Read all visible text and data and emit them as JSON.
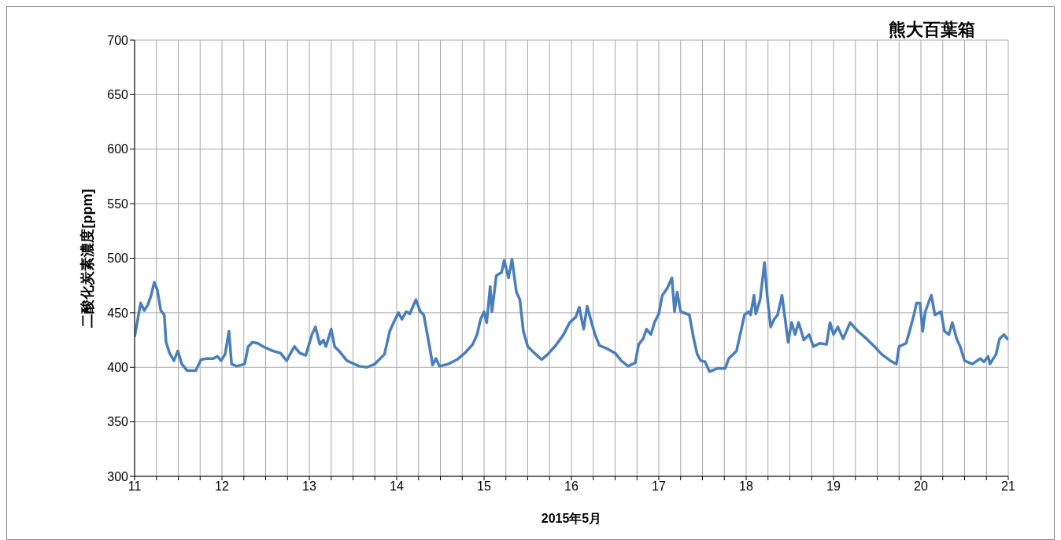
{
  "chart_data": {
    "type": "line",
    "title": "熊大百葉箱",
    "xlabel": "2015年5月",
    "ylabel": "二酸化炭素濃度[ppm]",
    "xlim": [
      11,
      21
    ],
    "ylim": [
      300,
      700
    ],
    "xticks": [
      11,
      {
        "value": 11.25,
        "label": null
      },
      {
        "value": 11.5,
        "label": null
      },
      {
        "value": 11.75,
        "label": null
      },
      12,
      {
        "value": 12.25,
        "label": null
      },
      {
        "value": 12.5,
        "label": null
      },
      {
        "value": 12.75,
        "label": null
      },
      13,
      {
        "value": 13.25,
        "label": null
      },
      {
        "value": 13.5,
        "label": null
      },
      {
        "value": 13.75,
        "label": null
      },
      14,
      {
        "value": 14.25,
        "label": null
      },
      {
        "value": 14.5,
        "label": null
      },
      {
        "value": 14.75,
        "label": null
      },
      15,
      {
        "value": 15.25,
        "label": null
      },
      {
        "value": 15.5,
        "label": null
      },
      {
        "value": 15.75,
        "label": null
      },
      16,
      {
        "value": 16.25,
        "label": null
      },
      {
        "value": 16.5,
        "label": null
      },
      {
        "value": 16.75,
        "label": null
      },
      17,
      {
        "value": 17.25,
        "label": null
      },
      {
        "value": 17.5,
        "label": null
      },
      {
        "value": 17.75,
        "label": null
      },
      18,
      {
        "value": 18.25,
        "label": null
      },
      {
        "value": 18.5,
        "label": null
      },
      {
        "value": 18.75,
        "label": null
      },
      19,
      {
        "value": 19.25,
        "label": null
      },
      {
        "value": 19.5,
        "label": null
      },
      {
        "value": 19.75,
        "label": null
      },
      20,
      {
        "value": 20.25,
        "label": null
      },
      {
        "value": 20.5,
        "label": null
      },
      {
        "value": 20.75,
        "label": null
      },
      21
    ],
    "yticks": [
      300,
      350,
      400,
      450,
      500,
      550,
      600,
      650,
      700
    ],
    "grid": true,
    "marker": "none",
    "series": [
      {
        "color": "#4a7ebb",
        "x": [
          11.0,
          11.045,
          11.07,
          11.11,
          11.15,
          11.19,
          11.225,
          11.26,
          11.3,
          11.34,
          11.36,
          11.4,
          11.45,
          11.495,
          11.54,
          11.6,
          11.7,
          11.76,
          11.83,
          11.9,
          11.95,
          11.99,
          12.036,
          12.08,
          12.11,
          12.17,
          12.26,
          12.3,
          12.35,
          12.41,
          12.47,
          12.58,
          12.67,
          12.74,
          12.8,
          12.83,
          12.89,
          12.96,
          13.03,
          13.07,
          13.12,
          13.16,
          13.19,
          13.25,
          13.29,
          13.34,
          13.43,
          13.57,
          13.66,
          13.75,
          13.86,
          13.92,
          13.97,
          14.02,
          14.06,
          14.11,
          14.15,
          14.22,
          14.27,
          14.31,
          14.36,
          14.4,
          14.41,
          14.45,
          14.49,
          14.59,
          14.69,
          14.78,
          14.87,
          14.92,
          14.96,
          15.0,
          15.03,
          15.07,
          15.09,
          15.14,
          15.2,
          15.23,
          15.28,
          15.32,
          15.37,
          15.41,
          15.45,
          15.5,
          15.59,
          15.66,
          15.73,
          15.82,
          15.91,
          15.98,
          16.05,
          16.09,
          16.14,
          16.18,
          16.23,
          16.27,
          16.32,
          16.41,
          16.5,
          16.57,
          16.65,
          16.73,
          16.77,
          16.82,
          16.86,
          16.91,
          16.95,
          17.0,
          17.04,
          17.1,
          17.15,
          17.18,
          17.21,
          17.25,
          17.35,
          17.4,
          17.44,
          17.48,
          17.53,
          17.58,
          17.67,
          17.76,
          17.8,
          17.89,
          17.94,
          17.98,
          18.03,
          18.05,
          18.09,
          18.11,
          18.16,
          18.21,
          18.24,
          18.28,
          18.32,
          18.36,
          18.41,
          18.44,
          18.48,
          18.52,
          18.56,
          18.6,
          18.66,
          18.72,
          18.77,
          18.84,
          18.92,
          18.96,
          19.0,
          19.05,
          19.11,
          19.19,
          19.28,
          19.38,
          19.47,
          19.55,
          19.65,
          19.72,
          19.75,
          19.83,
          19.87,
          19.92,
          19.95,
          19.99,
          20.02,
          20.05,
          20.1,
          20.12,
          20.16,
          20.23,
          20.27,
          20.32,
          20.36,
          20.41,
          20.45,
          20.5,
          20.59,
          20.68,
          20.72,
          20.77,
          20.79,
          20.86,
          20.9,
          20.95,
          21.0
        ],
        "values": [
          428,
          448,
          459,
          452,
          457,
          466,
          478,
          471,
          452,
          448,
          423,
          413,
          406,
          415,
          403,
          397,
          397,
          407,
          408,
          408,
          410,
          406,
          412,
          433,
          403,
          401,
          403,
          419,
          423,
          422,
          419,
          415,
          413,
          406,
          415,
          419,
          413,
          411,
          430,
          437,
          421,
          425,
          419,
          435,
          419,
          415,
          406,
          401,
          400,
          403,
          412,
          433,
          442,
          450,
          444,
          451,
          449,
          462,
          451,
          448,
          426,
          408,
          402,
          408,
          401,
          403,
          407,
          413,
          421,
          430,
          444,
          451,
          441,
          474,
          451,
          484,
          487,
          498,
          482,
          499,
          469,
          462,
          433,
          419,
          412,
          407,
          412,
          420,
          430,
          441,
          446,
          455,
          435,
          456,
          441,
          430,
          420,
          417,
          413,
          406,
          401,
          404,
          421,
          426,
          435,
          430,
          441,
          449,
          466,
          473,
          482,
          451,
          469,
          451,
          448,
          426,
          412,
          406,
          405,
          396,
          399,
          399,
          408,
          415,
          433,
          448,
          451,
          448,
          466,
          449,
          462,
          496,
          466,
          437,
          444,
          448,
          466,
          448,
          423,
          441,
          430,
          441,
          425,
          430,
          419,
          422,
          421,
          441,
          430,
          437,
          426,
          441,
          433,
          426,
          419,
          412,
          406,
          403,
          419,
          422,
          433,
          448,
          459,
          459,
          433,
          451,
          462,
          466,
          448,
          451,
          433,
          430,
          441,
          426,
          419,
          406,
          403,
          408,
          405,
          410,
          403,
          412,
          426,
          430,
          425
        ]
      }
    ]
  }
}
